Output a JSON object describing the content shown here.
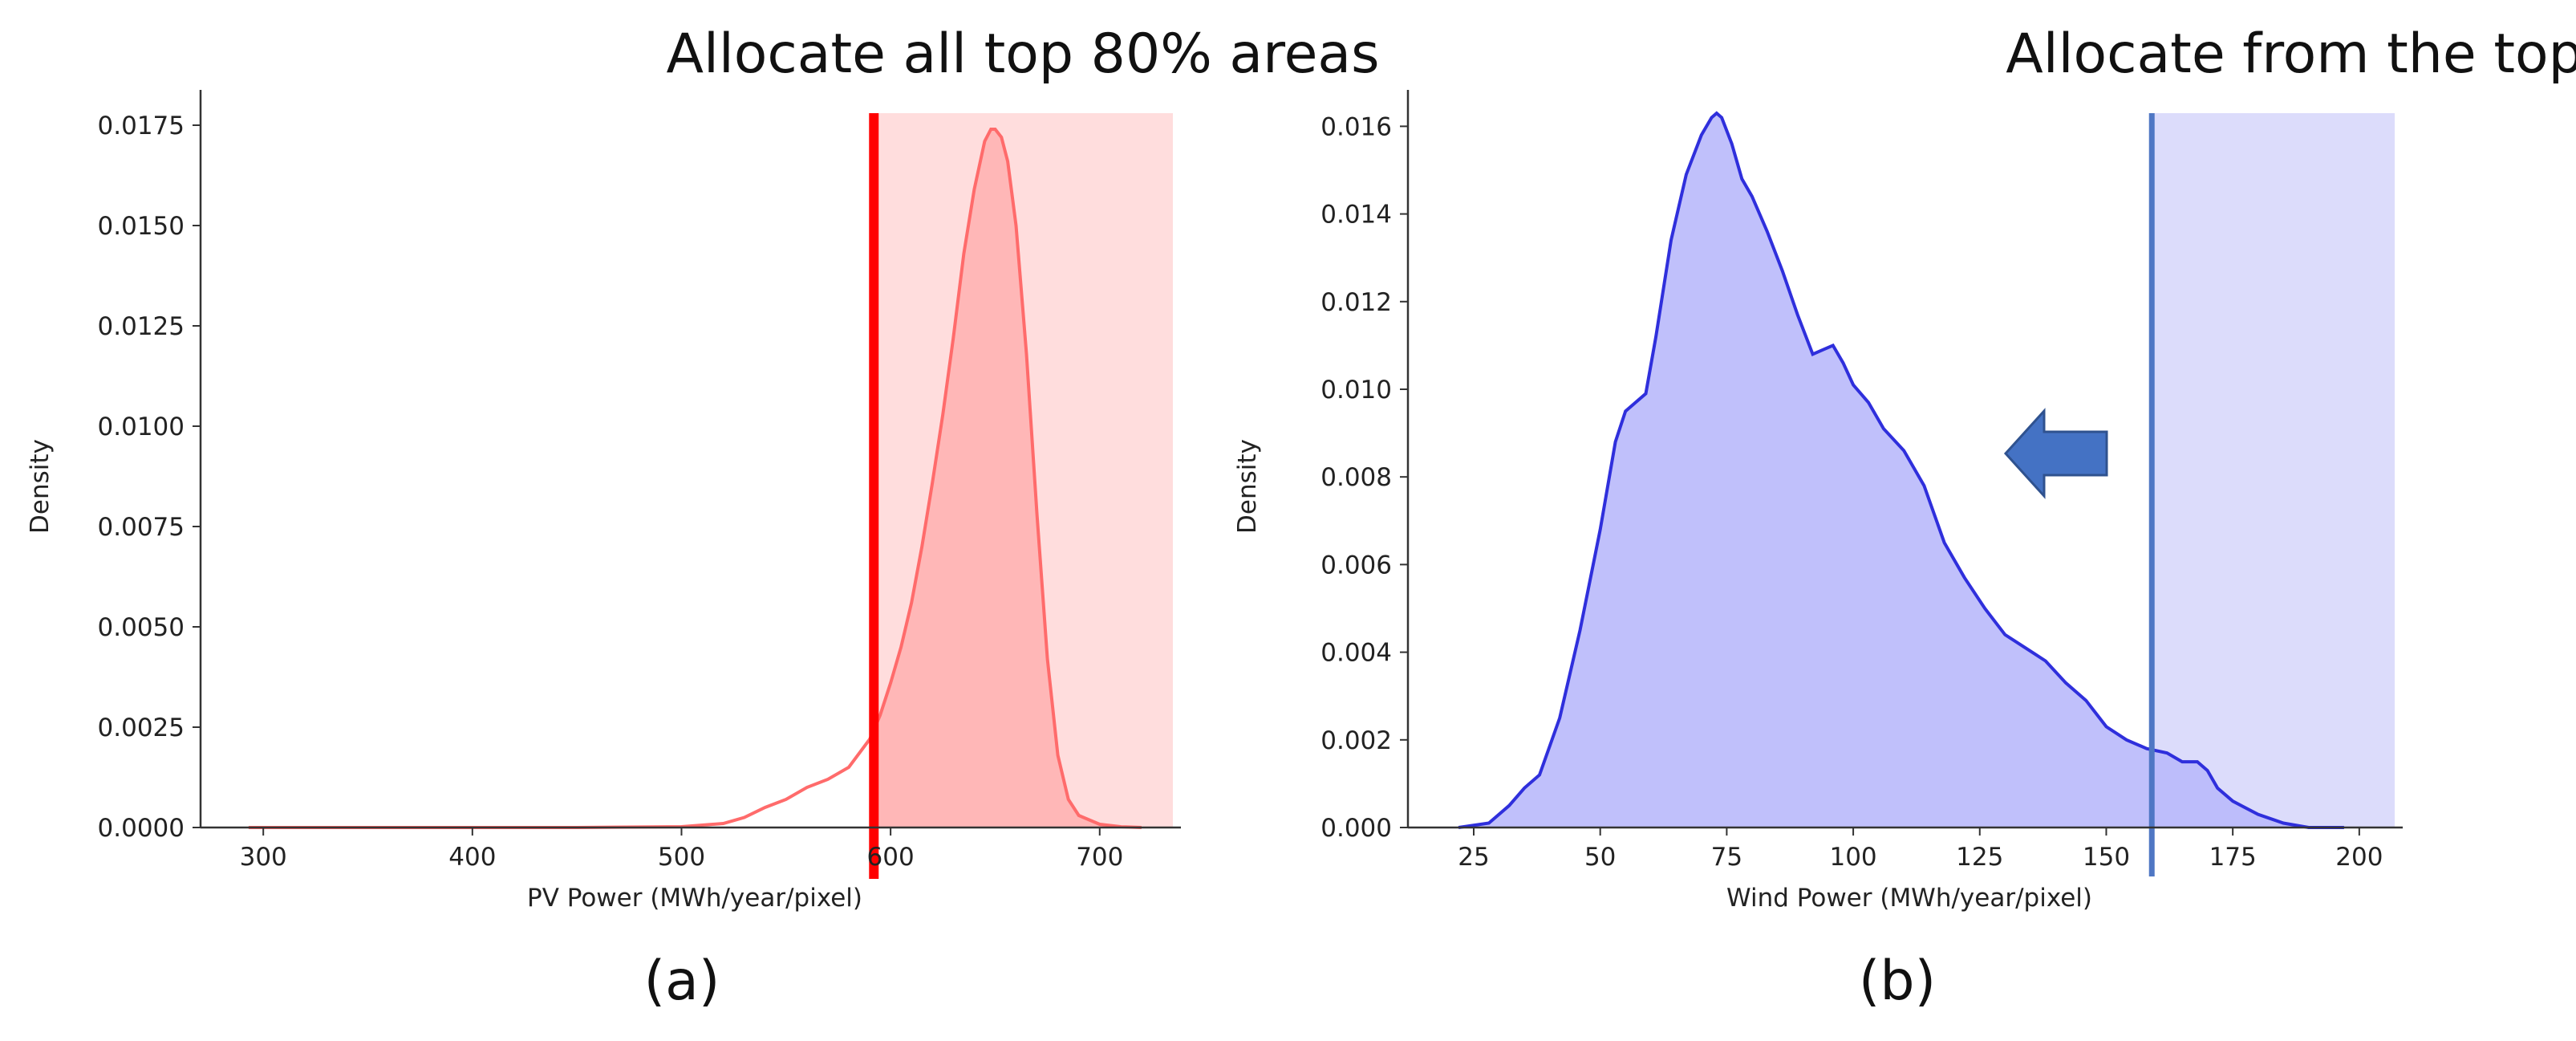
{
  "figure": {
    "annotation_left": "Allocate all top 80% areas",
    "annotation_right": "Allocate from the top",
    "panel_a_label": "(a)",
    "panel_b_label": "(b)"
  },
  "colors": {
    "pv_line": "#ff6b6b",
    "pv_fill": "#ffb7b7",
    "pv_region": "#ffdddd",
    "pv_threshold": "#ff0000",
    "wind_line": "#2f2fdc",
    "wind_fill": "#b9b9fb",
    "wind_region": "#dcdcfb",
    "wind_threshold": "#4f77c4",
    "arrow": "#4472c4"
  },
  "chart_data": [
    {
      "type": "area",
      "xlabel": "PV Power (MWh/year/pixel)",
      "ylabel": "Density",
      "xlim": [
        270,
        735
      ],
      "ylim": [
        0,
        0.0178
      ],
      "xticks": [
        300,
        400,
        500,
        600,
        700
      ],
      "yticks": [
        "0.0000",
        "0.0025",
        "0.0050",
        "0.0075",
        "0.0100",
        "0.0125",
        "0.0150",
        "0.0175"
      ],
      "xtick_labels": [
        "300",
        "400",
        "500",
        "600",
        "700"
      ],
      "shaded_region": [
        592,
        735
      ],
      "threshold": 592,
      "x": [
        293,
        350,
        400,
        450,
        500,
        520,
        530,
        540,
        550,
        560,
        570,
        580,
        590,
        595,
        600,
        605,
        610,
        615,
        620,
        625,
        630,
        635,
        640,
        645,
        648,
        650,
        653,
        656,
        660,
        665,
        670,
        675,
        680,
        685,
        690,
        700,
        710,
        720
      ],
      "y": [
        0.0,
        0.0,
        0.0,
        0.0,
        2e-05,
        0.0001,
        0.00025,
        0.0005,
        0.0007,
        0.001,
        0.0012,
        0.0015,
        0.0022,
        0.0028,
        0.0036,
        0.0045,
        0.0056,
        0.007,
        0.0086,
        0.0103,
        0.0122,
        0.0143,
        0.0159,
        0.0171,
        0.0174,
        0.0174,
        0.0172,
        0.0166,
        0.015,
        0.0118,
        0.0078,
        0.0042,
        0.0018,
        0.0007,
        0.0003,
        8e-05,
        2e-05,
        0.0
      ],
      "fill_from": 592
    },
    {
      "type": "area",
      "xlabel": "Wind Power (MWh/year/pixel)",
      "ylabel": "Density",
      "xlim": [
        12,
        207
      ],
      "ylim": [
        0,
        0.0163
      ],
      "xticks": [
        25,
        50,
        75,
        100,
        125,
        150,
        175,
        200
      ],
      "yticks": [
        "0.000",
        "0.002",
        "0.004",
        "0.006",
        "0.008",
        "0.010",
        "0.012",
        "0.014",
        "0.016"
      ],
      "xtick_labels": [
        "25",
        "50",
        "75",
        "100",
        "125",
        "150",
        "175",
        "200"
      ],
      "shaded_region": [
        159,
        207
      ],
      "threshold": 159,
      "x": [
        22,
        28,
        32,
        35,
        38,
        42,
        46,
        50,
        53,
        55,
        57,
        59,
        61,
        64,
        67,
        70,
        72,
        73,
        74,
        76,
        78,
        80,
        83,
        86,
        89,
        92,
        94,
        96,
        98,
        100,
        103,
        106,
        110,
        114,
        118,
        122,
        126,
        130,
        134,
        138,
        142,
        146,
        150,
        154,
        158,
        162,
        165,
        168,
        170,
        172,
        175,
        180,
        185,
        190,
        197
      ],
      "y": [
        0.0,
        0.0001,
        0.0005,
        0.0009,
        0.0012,
        0.0025,
        0.0045,
        0.0068,
        0.0088,
        0.0095,
        0.0097,
        0.0099,
        0.0112,
        0.0134,
        0.0149,
        0.0158,
        0.0162,
        0.0163,
        0.0162,
        0.0156,
        0.0148,
        0.0144,
        0.0136,
        0.0127,
        0.0117,
        0.0108,
        0.0109,
        0.011,
        0.0106,
        0.0101,
        0.0097,
        0.0091,
        0.0086,
        0.0078,
        0.0065,
        0.0057,
        0.005,
        0.0044,
        0.0041,
        0.0038,
        0.0033,
        0.0029,
        0.0023,
        0.002,
        0.0018,
        0.0017,
        0.0015,
        0.0015,
        0.0013,
        0.0009,
        0.0006,
        0.0003,
        0.0001,
        0.0,
        0.0
      ],
      "fill_from": null
    }
  ]
}
